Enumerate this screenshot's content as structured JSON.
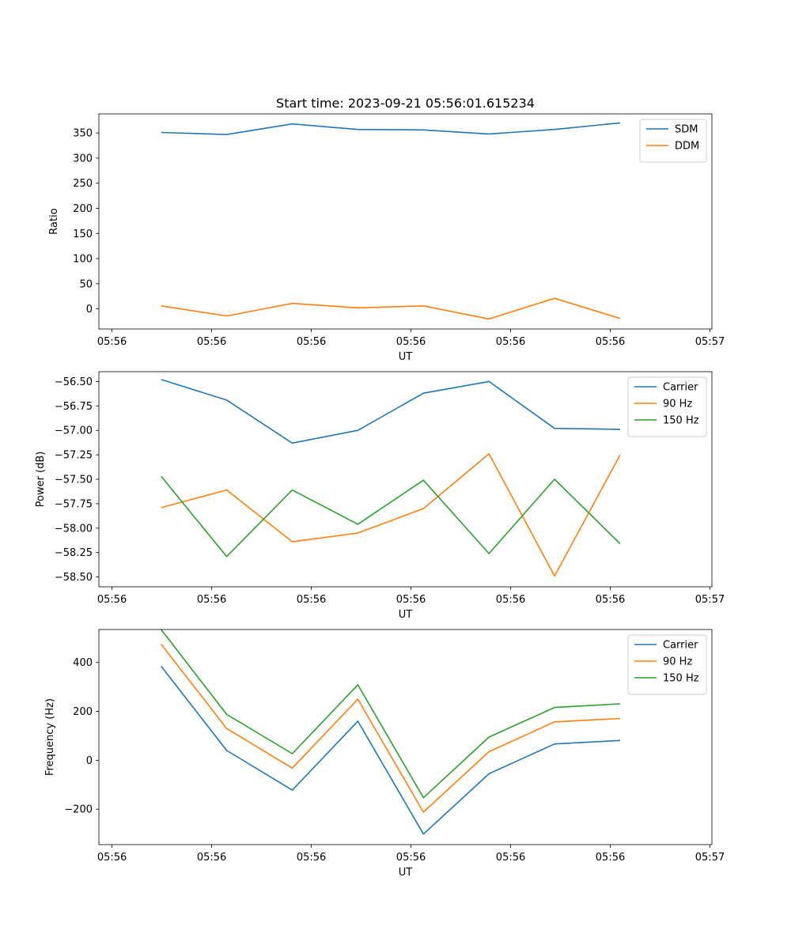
{
  "chart_data": [
    {
      "type": "line",
      "title": "Start time: 2023-09-21 05:56:01.615234",
      "xlabel": "UT",
      "ylabel": "Ratio",
      "x": [
        0,
        1,
        2,
        3,
        4,
        5,
        6,
        7
      ],
      "x_tick_labels": [
        "05:56",
        "05:56",
        "05:56",
        "05:56",
        "05:56",
        "05:56",
        "05:57"
      ],
      "ylim": [
        -40,
        388
      ],
      "yticks": [
        0,
        50,
        100,
        150,
        200,
        250,
        300,
        350
      ],
      "series": [
        {
          "name": "SDM",
          "color": "#1f77b4",
          "values": [
            351,
            347,
            368,
            357,
            356,
            348,
            357,
            370
          ]
        },
        {
          "name": "DDM",
          "color": "#ff7f0e",
          "values": [
            6,
            -14,
            11,
            2,
            6,
            -20,
            21,
            -19
          ]
        }
      ]
    },
    {
      "type": "line",
      "title": "",
      "xlabel": "UT",
      "ylabel": "Power (dB)",
      "x": [
        0,
        1,
        2,
        3,
        4,
        5,
        6,
        7
      ],
      "x_tick_labels": [
        "05:56",
        "05:56",
        "05:56",
        "05:56",
        "05:56",
        "05:56",
        "05:57"
      ],
      "ylim": [
        -58.6,
        -56.4
      ],
      "yticks": [
        -58.5,
        -58.25,
        -58.0,
        -57.75,
        -57.5,
        -57.25,
        -57.0,
        -56.75,
        -56.5
      ],
      "ytick_labels": [
        "−58.50",
        "−58.25",
        "−58.00",
        "−57.75",
        "−57.50",
        "−57.25",
        "−57.00",
        "−56.75",
        "−56.50"
      ],
      "series": [
        {
          "name": "Carrier",
          "color": "#1f77b4",
          "values": [
            -56.48,
            -56.69,
            -57.13,
            -57.0,
            -56.62,
            -56.5,
            -56.98,
            -56.99
          ]
        },
        {
          "name": "90 Hz",
          "color": "#ff7f0e",
          "values": [
            -57.79,
            -57.61,
            -58.14,
            -58.05,
            -57.8,
            -57.24,
            -58.49,
            -57.25
          ]
        },
        {
          "name": "150 Hz",
          "color": "#2ca02c",
          "values": [
            -57.47,
            -58.29,
            -57.61,
            -57.96,
            -57.51,
            -58.26,
            -57.5,
            -58.16
          ]
        }
      ]
    },
    {
      "type": "line",
      "title": "",
      "xlabel": "UT",
      "ylabel": "Frequency (Hz)",
      "x": [
        0,
        1,
        2,
        3,
        4,
        5,
        6,
        7
      ],
      "x_tick_labels": [
        "05:56",
        "05:56",
        "05:56",
        "05:56",
        "05:56",
        "05:56",
        "05:57"
      ],
      "ylim": [
        -345,
        535
      ],
      "yticks": [
        -200,
        0,
        200,
        400
      ],
      "ytick_labels": [
        "−200",
        "0",
        "200",
        "400"
      ],
      "series": [
        {
          "name": "Carrier",
          "color": "#1f77b4",
          "values": [
            385,
            40,
            -122,
            160,
            -302,
            -55,
            67,
            81
          ]
        },
        {
          "name": "90 Hz",
          "color": "#ff7f0e",
          "values": [
            475,
            130,
            -32,
            250,
            -212,
            35,
            157,
            171
          ]
        },
        {
          "name": "150 Hz",
          "color": "#2ca02c",
          "values": [
            535,
            188,
            27,
            309,
            -153,
            95,
            216,
            231
          ]
        }
      ]
    }
  ]
}
